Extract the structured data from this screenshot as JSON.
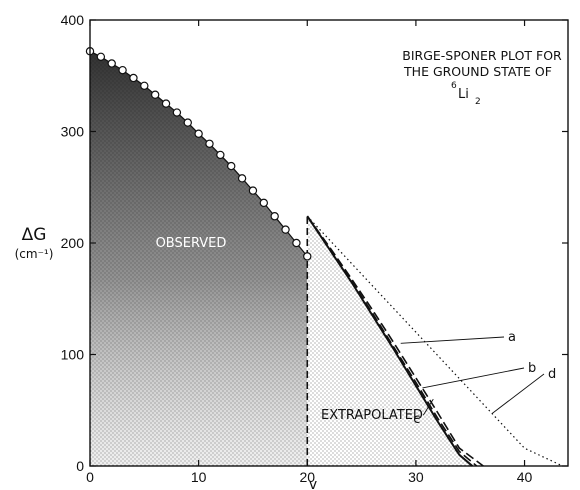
{
  "chart_data": {
    "type": "area",
    "title_lines": [
      "BIRGE-SPONER PLOT FOR",
      "THE GROUND STATE OF"
    ],
    "molecule": {
      "mass_number": "6",
      "symbol": "Li",
      "subscript": "2"
    },
    "xlabel": "v",
    "ylabel": "ΔG",
    "yunit": "(cm⁻¹)",
    "xlim": [
      0,
      44
    ],
    "ylim": [
      0,
      400
    ],
    "x_ticks": [
      0,
      10,
      20,
      30,
      40
    ],
    "y_ticks": [
      0,
      100,
      200,
      300,
      400
    ],
    "region_labels": {
      "observed": "OBSERVED",
      "extrapolated": "EXTRAPOLATED"
    },
    "divider_v": 20,
    "observed_points": {
      "x": [
        0,
        1,
        2,
        3,
        4,
        5,
        6,
        7,
        8,
        9,
        10,
        11,
        12,
        13,
        14,
        15,
        16,
        17,
        18,
        19,
        20
      ],
      "y": [
        372,
        367,
        361,
        355,
        348,
        341,
        333,
        325,
        317,
        308,
        298,
        289,
        279,
        269,
        258,
        247,
        236,
        224,
        212,
        200,
        188
      ]
    },
    "curves": [
      {
        "label": "a",
        "style": "solid",
        "x": [
          20,
          22,
          24,
          26,
          28,
          30,
          32,
          34,
          35.2
        ],
        "y": [
          224,
          195,
          166,
          135,
          104,
          72,
          40,
          10,
          0
        ]
      },
      {
        "label": "b",
        "style": "dashed",
        "x": [
          20,
          22,
          24,
          26,
          28,
          30,
          32,
          34,
          35.6
        ],
        "y": [
          224,
          196,
          167,
          137,
          106,
          75,
          43,
          13,
          0
        ]
      },
      {
        "label": "c",
        "style": "dashed",
        "x": [
          20,
          22,
          24,
          26,
          28,
          30,
          32,
          34,
          36.2
        ],
        "y": [
          224,
          197,
          169,
          140,
          110,
          79,
          48,
          16,
          0
        ]
      },
      {
        "label": "d",
        "style": "dotted",
        "x": [
          20,
          25,
          30,
          35,
          40,
          43.5
        ],
        "y": [
          224,
          172,
          120,
          68,
          16,
          0
        ]
      }
    ]
  }
}
